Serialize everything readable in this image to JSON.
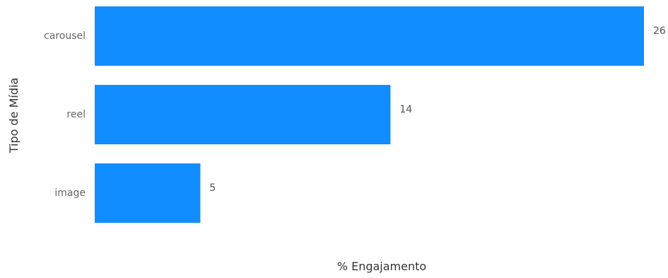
{
  "chart_data": {
    "type": "bar",
    "orientation": "horizontal",
    "categories": [
      "carousel",
      "reel",
      "image"
    ],
    "values": [
      26,
      14,
      5
    ],
    "xlabel": "% Engajamento",
    "ylabel": "Tipo de Mídia",
    "xlim": [
      0,
      26
    ],
    "grid": false,
    "legend": "none",
    "bar_color": "#118DFF",
    "data_labels": [
      "26",
      "14",
      "5"
    ]
  }
}
